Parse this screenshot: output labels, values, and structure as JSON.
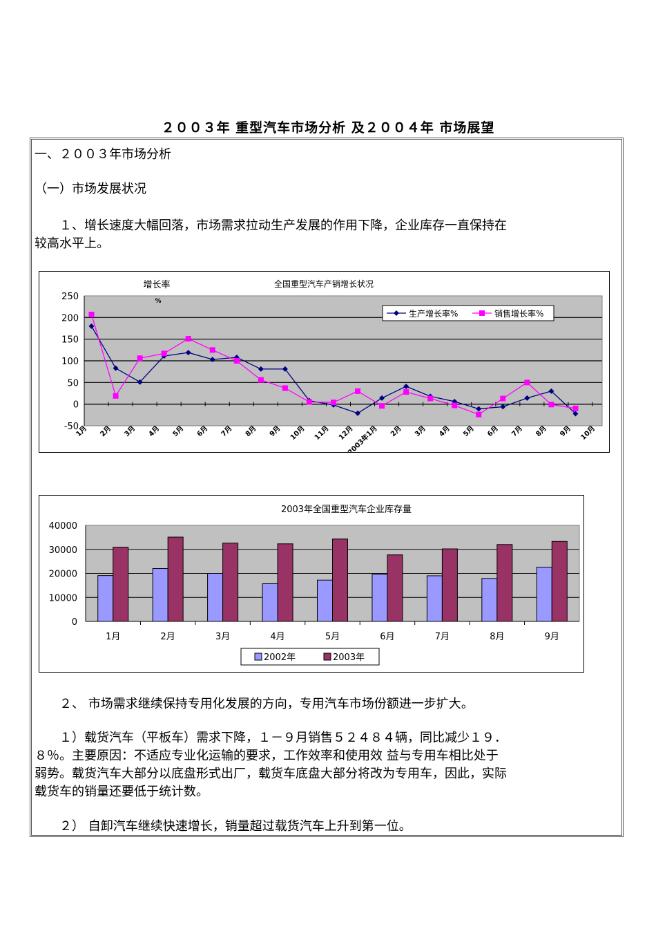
{
  "document": {
    "title": "２００３年 重型汽车市场分析 及２００４年 市场展望",
    "section1_heading": "一、２００３年市场分析",
    "subsection1_heading": "（一）市场发展状况",
    "para1_line1": "　　１、增长速度大幅回落，市场需求拉动生产发展的作用下降，企业库存一直保持在",
    "para1_line2": "较高水平上。",
    "para2": "　　２、 市场需求继续保持专用化发展的方向，专用汽车市场份额进一步扩大。",
    "para3_line1": "　　１）载货汽车（平板车）需求下降，１－９月销售５２４８４辆，同比减少１９．",
    "para3_line2": "８％。主要原因：不适应专业化运输的要求，工作效率和使用效 益与专用车相比处于",
    "para3_line3": "弱势。载货汽车大部分以底盘形式出厂，载货车底盘大部分将改为专用车，因此，实际",
    "para3_line4": "载货车的销量还要低于统计数。",
    "para4": "　　２） 自卸汽车继续快速增长，销量超过载货汽车上升到第一位。"
  },
  "chart_data": [
    {
      "type": "line",
      "title": "全国重型汽车产销增长状况",
      "ylabel": "增长率 %",
      "xlabel": "",
      "ylim": [
        -50,
        250
      ],
      "yticks": [
        250,
        200,
        150,
        100,
        50,
        0,
        -50
      ],
      "grid": true,
      "legend_position": "top-right inside plot",
      "categories": [
        "1月",
        "2月",
        "3月",
        "4月",
        "5月",
        "6月",
        "7月",
        "8月",
        "9月",
        "10月",
        "11月",
        "12月",
        "2003年1月",
        "2月",
        "3月",
        "4月",
        "5月",
        "6月",
        "7月",
        "8月",
        "9月",
        "10月"
      ],
      "series": [
        {
          "name": "生产增长率%",
          "color": "#000080",
          "marker": "diamond",
          "values": [
            180,
            83,
            51,
            111,
            119,
            103,
            108,
            81,
            81,
            8,
            -2,
            -21,
            14,
            41,
            18,
            6,
            -11,
            -6,
            14,
            30,
            -22
          ]
        },
        {
          "name": "销售增长率%",
          "color": "#ff00ff",
          "marker": "square",
          "values": [
            207,
            19,
            106,
            117,
            151,
            125,
            100,
            56,
            37,
            5,
            4,
            30,
            -4,
            28,
            13,
            -3,
            -24,
            13,
            50,
            -1,
            -10
          ]
        }
      ]
    },
    {
      "type": "bar",
      "title": "2003年全国重型汽车企业库存量",
      "xlabel": "",
      "ylabel": "",
      "ylim": [
        0,
        40000
      ],
      "yticks": [
        40000,
        30000,
        20000,
        10000,
        0
      ],
      "grid": true,
      "legend_position": "bottom",
      "categories": [
        "1月",
        "2月",
        "3月",
        "4月",
        "5月",
        "6月",
        "7月",
        "8月",
        "9月"
      ],
      "series": [
        {
          "name": "2002年",
          "color": "#9999ff",
          "values": [
            19100,
            22000,
            20000,
            15700,
            17200,
            19600,
            19000,
            17900,
            22600
          ]
        },
        {
          "name": "2003年",
          "color": "#993366",
          "values": [
            30900,
            35100,
            32600,
            32300,
            34300,
            27700,
            30200,
            32000,
            33300
          ]
        }
      ]
    }
  ]
}
